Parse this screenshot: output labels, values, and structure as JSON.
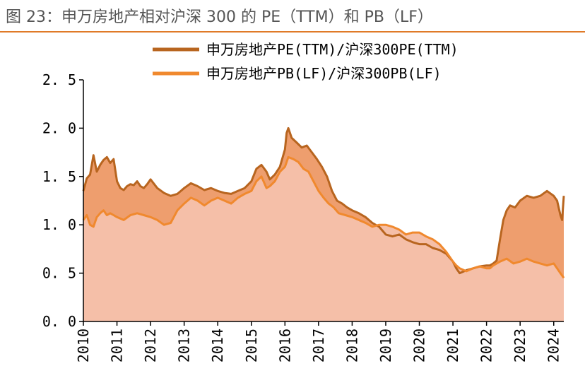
{
  "figure_title": "图 23：申万房地产相对沪深 300 的 PE（TTM）和 PB（LF）",
  "colors": {
    "accent_rule": "#E07A28",
    "pe_line": "#B8651F",
    "pb_line": "#F0892E",
    "pe_fill": "#EE9E6E",
    "pb_fill": "#F5BFA8",
    "axis": "#000000"
  },
  "chart_data": {
    "type": "area",
    "title": "",
    "xlabel": "",
    "ylabel": "",
    "ylim": [
      0,
      2.5
    ],
    "xlim": [
      2010,
      2024.3
    ],
    "y_ticks": [
      "0.0",
      "0.5",
      "1.0",
      "1.5",
      "2.0",
      "2.5"
    ],
    "x_ticks": [
      "2010",
      "2011",
      "2012",
      "2013",
      "2014",
      "2015",
      "2016",
      "2017",
      "2018",
      "2019",
      "2020",
      "2021",
      "2022",
      "2023",
      "2024"
    ],
    "grid": false,
    "legend": "top",
    "series": [
      {
        "name": "申万房地产PE(TTM)/沪深300PE(TTM)",
        "x": [
          2010.0,
          2010.1,
          2010.2,
          2010.3,
          2010.4,
          2010.5,
          2010.6,
          2010.7,
          2010.8,
          2010.9,
          2011.0,
          2011.1,
          2011.2,
          2011.3,
          2011.4,
          2011.5,
          2011.6,
          2011.7,
          2011.8,
          2011.9,
          2012.0,
          2012.2,
          2012.4,
          2012.6,
          2012.8,
          2013.0,
          2013.2,
          2013.4,
          2013.6,
          2013.8,
          2014.0,
          2014.2,
          2014.4,
          2014.6,
          2014.8,
          2015.0,
          2015.15,
          2015.3,
          2015.45,
          2015.55,
          2015.7,
          2015.85,
          2016.0,
          2016.05,
          2016.1,
          2016.2,
          2016.35,
          2016.5,
          2016.65,
          2016.8,
          2016.95,
          2017.1,
          2017.25,
          2017.4,
          2017.55,
          2017.7,
          2017.85,
          2018.0,
          2018.2,
          2018.4,
          2018.6,
          2018.8,
          2019.0,
          2019.2,
          2019.4,
          2019.6,
          2019.8,
          2020.0,
          2020.2,
          2020.4,
          2020.6,
          2020.8,
          2021.0,
          2021.1,
          2021.2,
          2021.4,
          2021.6,
          2021.8,
          2022.0,
          2022.1,
          2022.2,
          2022.3,
          2022.4,
          2022.5,
          2022.6,
          2022.7,
          2022.85,
          2023.0,
          2023.2,
          2023.4,
          2023.6,
          2023.8,
          2024.0,
          2024.1,
          2024.2,
          2024.25,
          2024.3
        ],
        "values": [
          1.35,
          1.48,
          1.52,
          1.72,
          1.55,
          1.62,
          1.67,
          1.7,
          1.64,
          1.68,
          1.45,
          1.38,
          1.36,
          1.4,
          1.42,
          1.41,
          1.45,
          1.4,
          1.38,
          1.42,
          1.47,
          1.38,
          1.33,
          1.3,
          1.32,
          1.38,
          1.43,
          1.4,
          1.36,
          1.38,
          1.35,
          1.33,
          1.32,
          1.35,
          1.38,
          1.45,
          1.58,
          1.62,
          1.55,
          1.47,
          1.52,
          1.6,
          1.78,
          1.95,
          2.0,
          1.9,
          1.85,
          1.8,
          1.82,
          1.75,
          1.68,
          1.6,
          1.5,
          1.35,
          1.25,
          1.22,
          1.18,
          1.15,
          1.12,
          1.08,
          1.02,
          0.98,
          0.9,
          0.88,
          0.9,
          0.85,
          0.82,
          0.8,
          0.8,
          0.76,
          0.74,
          0.7,
          0.62,
          0.55,
          0.5,
          0.53,
          0.55,
          0.57,
          0.58,
          0.58,
          0.6,
          0.63,
          0.85,
          1.05,
          1.15,
          1.2,
          1.18,
          1.25,
          1.3,
          1.28,
          1.3,
          1.35,
          1.3,
          1.25,
          1.1,
          1.05,
          1.3
        ]
      },
      {
        "name": "申万房地产PB(LF)/沪深300PB(LF)",
        "x": [
          2010.0,
          2010.1,
          2010.2,
          2010.3,
          2010.4,
          2010.5,
          2010.6,
          2010.7,
          2010.8,
          2010.9,
          2011.0,
          2011.2,
          2011.4,
          2011.6,
          2011.8,
          2012.0,
          2012.2,
          2012.4,
          2012.6,
          2012.8,
          2013.0,
          2013.2,
          2013.4,
          2013.6,
          2013.8,
          2014.0,
          2014.2,
          2014.4,
          2014.6,
          2014.8,
          2015.0,
          2015.15,
          2015.3,
          2015.45,
          2015.55,
          2015.7,
          2015.85,
          2016.0,
          2016.1,
          2016.25,
          2016.4,
          2016.55,
          2016.7,
          2016.85,
          2017.0,
          2017.15,
          2017.3,
          2017.45,
          2017.6,
          2017.8,
          2018.0,
          2018.2,
          2018.4,
          2018.6,
          2018.8,
          2019.0,
          2019.2,
          2019.4,
          2019.6,
          2019.8,
          2020.0,
          2020.2,
          2020.4,
          2020.6,
          2020.8,
          2021.0,
          2021.1,
          2021.2,
          2021.4,
          2021.6,
          2021.8,
          2022.0,
          2022.1,
          2022.2,
          2022.3,
          2022.4,
          2022.6,
          2022.8,
          2023.0,
          2023.2,
          2023.4,
          2023.6,
          2023.8,
          2024.0,
          2024.1,
          2024.2,
          2024.3
        ],
        "values": [
          1.05,
          1.1,
          1.0,
          0.98,
          1.08,
          1.12,
          1.15,
          1.1,
          1.12,
          1.1,
          1.08,
          1.05,
          1.1,
          1.12,
          1.1,
          1.08,
          1.05,
          1.0,
          1.02,
          1.15,
          1.22,
          1.28,
          1.25,
          1.2,
          1.25,
          1.28,
          1.25,
          1.22,
          1.28,
          1.32,
          1.35,
          1.45,
          1.5,
          1.38,
          1.4,
          1.45,
          1.55,
          1.6,
          1.7,
          1.68,
          1.65,
          1.58,
          1.55,
          1.45,
          1.35,
          1.28,
          1.22,
          1.18,
          1.12,
          1.1,
          1.08,
          1.05,
          1.02,
          0.98,
          1.0,
          1.0,
          0.98,
          0.95,
          0.9,
          0.92,
          0.92,
          0.88,
          0.85,
          0.8,
          0.72,
          0.62,
          0.58,
          0.55,
          0.52,
          0.55,
          0.57,
          0.55,
          0.55,
          0.58,
          0.6,
          0.62,
          0.65,
          0.6,
          0.62,
          0.65,
          0.62,
          0.6,
          0.58,
          0.6,
          0.55,
          0.5,
          0.45
        ]
      }
    ]
  }
}
